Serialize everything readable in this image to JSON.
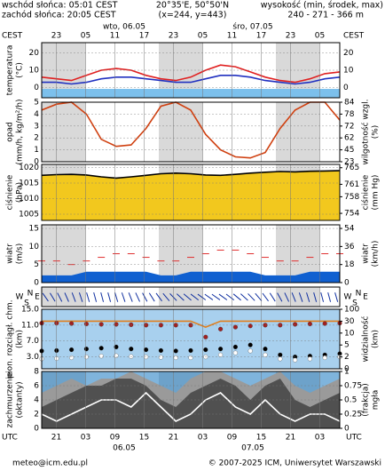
{
  "header": {
    "sunrise": "wschód słońca: 05:01 CEST",
    "sunset": "zachód słońca: 20:05 CEST",
    "coords": "20°35'E, 50°50'N",
    "grid": "(x=244, y=443)",
    "height_title": "wysokość (min, środek, max)",
    "height_values": "240 - 271 - 366 m"
  },
  "top_axis": {
    "label": "CEST",
    "ticks": [
      "23",
      "05",
      "11",
      "17",
      "23",
      "05",
      "11",
      "17",
      "23",
      "05"
    ],
    "dates": [
      "wto, 06.05",
      "śro, 07.05"
    ]
  },
  "bottom_axis": {
    "label": "UTC",
    "ticks": [
      "21",
      "03",
      "09",
      "15",
      "21",
      "03",
      "09",
      "15",
      "21",
      "03"
    ],
    "dates": [
      "06.05",
      "07.05"
    ]
  },
  "direction_labels": [
    "W",
    "S",
    "N",
    "E"
  ],
  "panels": [
    {
      "left_label": [
        "temperatura",
        "(°C)"
      ],
      "ylim": [
        -6,
        26
      ],
      "yticks": [
        0,
        10,
        20
      ],
      "right_ticks_same": true,
      "series": [
        {
          "color": "#e02020",
          "style": "line",
          "values": [
            6,
            5,
            4,
            7,
            10,
            11,
            10,
            7,
            5,
            4,
            6,
            10,
            13,
            12,
            9,
            6,
            4,
            3,
            5,
            8,
            9
          ]
        },
        {
          "color": "#2030c0",
          "style": "line",
          "values": [
            3,
            3,
            2,
            3,
            5,
            6,
            6,
            5,
            4,
            3,
            3,
            5,
            7,
            7,
            6,
            4,
            3,
            2,
            3,
            5,
            6
          ]
        }
      ]
    },
    {
      "left_label": [
        "opad",
        "(mm/h, kg/m²/h)"
      ],
      "right_label": [
        "wilgotność wzgl.",
        "(%)"
      ],
      "ylim": [
        0,
        5
      ],
      "yticks": [
        0,
        1,
        2,
        3,
        4,
        5
      ],
      "y2ticks": [
        23,
        45,
        62,
        72,
        78,
        84
      ],
      "y2_even_ticks": true,
      "series": [
        {
          "color": "#d04010",
          "style": "line",
          "axis": "y2",
          "values": [
            80,
            83,
            84,
            78,
            60,
            50,
            52,
            70,
            82,
            84,
            80,
            65,
            45,
            32,
            30,
            40,
            70,
            80,
            84,
            84,
            75
          ]
        }
      ]
    },
    {
      "left_label": [
        "ciśnienie",
        "(hPa)"
      ],
      "right_label": [
        "ciśnienie",
        "(mm Hg)"
      ],
      "ylim": [
        1003,
        1021
      ],
      "yticks": [
        1005,
        1010,
        1015,
        1020
      ],
      "y2lim": [
        752.3,
        765.8
      ],
      "y2ticks": [
        754,
        758,
        761,
        765
      ],
      "series": [
        {
          "color": "#000000",
          "fill": "#f2c81e",
          "style": "line",
          "values": [
            1017.5,
            1017.7,
            1017.8,
            1017.6,
            1017,
            1016.6,
            1017,
            1017.5,
            1018,
            1018.2,
            1018,
            1017.6,
            1017.5,
            1017.8,
            1018.2,
            1018.5,
            1018.7,
            1018.6,
            1018.8,
            1018.9,
            1019
          ]
        }
      ]
    },
    {
      "left_label": [
        "wiatr",
        "(m/s)"
      ],
      "right_label": [
        "wiatr",
        "(km/h)"
      ],
      "ylim": [
        0,
        16
      ],
      "yticks": [
        0,
        5,
        10,
        15
      ],
      "y2lim": [
        0,
        57.6
      ],
      "y2ticks": [
        0,
        18,
        36,
        54
      ],
      "series": [
        {
          "color": "#1060d0",
          "style": "area",
          "values": [
            2,
            2,
            2,
            3,
            3,
            3,
            3,
            3,
            2,
            2,
            3,
            3,
            3,
            3,
            3,
            2,
            2,
            2,
            3,
            3,
            3
          ]
        },
        {
          "color": "#e03030",
          "style": "dashes",
          "values": [
            6,
            6,
            5,
            6,
            7,
            8,
            8,
            7,
            6,
            6,
            7,
            8,
            9,
            9,
            8,
            7,
            6,
            6,
            7,
            8,
            8
          ]
        }
      ]
    },
    {
      "left_label": [
        "pion. rozciągł. chm.",
        "(km)"
      ],
      "right_label": [
        "widzialność",
        "(km)"
      ],
      "ylim": [
        0,
        15
      ],
      "yticks": [
        {
          "value": 3,
          "label": "3.0"
        },
        {
          "value": 7,
          "label": "7.0"
        },
        {
          "value": 11,
          "label": "11.0"
        },
        {
          "value": 15,
          "label": "15.0"
        }
      ],
      "y2ticks": [
        0,
        2,
        5,
        10,
        30,
        100
      ],
      "y2_even_ticks": true,
      "series": [
        {
          "color": "#e08020",
          "style": "line",
          "axis": "y2",
          "values": [
            30,
            30,
            30,
            30,
            30,
            30,
            30,
            30,
            30,
            30,
            30,
            20,
            30,
            30,
            30,
            30,
            30,
            30,
            30,
            30,
            30
          ]
        },
        {
          "color": "#a02020",
          "style": "dots",
          "values": [
            11.5,
            11.5,
            11.4,
            11.3,
            11.2,
            11.2,
            11.1,
            11,
            11,
            11,
            11,
            8,
            10,
            10.5,
            10.8,
            11,
            11,
            11.2,
            11.3,
            11.4,
            11.5
          ]
        },
        {
          "color": "#000000",
          "style": "dots",
          "values": [
            4.5,
            4.6,
            4.8,
            5,
            5.2,
            5.5,
            5,
            4.8,
            4.6,
            4.5,
            4.6,
            4.8,
            5,
            5.5,
            6,
            5,
            3.5,
            3,
            3.2,
            3.5,
            3.8
          ]
        },
        {
          "color": "#ffffff",
          "style": "dots",
          "values": [
            2.5,
            2.6,
            2.8,
            3,
            3.2,
            3.3,
            3.1,
            3,
            2.9,
            2.8,
            2.8,
            3,
            3.5,
            4,
            4.5,
            3.5,
            2.5,
            2.2,
            2.5,
            2.8,
            3
          ]
        }
      ]
    },
    {
      "left_label": [
        "zachmurzenie",
        "(oktanty)"
      ],
      "right_label": [
        "(frakcja)",
        "mgła"
      ],
      "ylim": [
        0,
        8
      ],
      "yticks": [
        0,
        2,
        4,
        6,
        8
      ],
      "y2lim": [
        0,
        1
      ],
      "y2ticks": [
        0,
        0.25,
        0.5,
        0.75,
        1
      ],
      "series": [
        {
          "color": "#9a9a9a",
          "style": "area",
          "values": [
            5,
            6,
            7,
            6,
            7,
            7,
            8,
            7,
            6,
            5,
            7,
            8,
            8,
            7,
            6,
            7,
            8,
            6,
            5,
            6,
            7
          ]
        },
        {
          "color": "#505050",
          "style": "area",
          "values": [
            3,
            4,
            5,
            6,
            6,
            7,
            7,
            6,
            4,
            3,
            5,
            6,
            7,
            6,
            4,
            6,
            7,
            4,
            3,
            4,
            5
          ]
        },
        {
          "color": "#ffffff",
          "style": "line",
          "values": [
            2,
            1,
            2,
            3,
            4,
            4,
            3,
            5,
            3,
            1,
            2,
            4,
            5,
            3,
            2,
            4,
            2,
            1,
            2,
            2,
            1
          ]
        }
      ]
    }
  ],
  "footer": {
    "email": "meteo@icm.edu.pl",
    "copyright": "© 2007-2025 ICM, Uniwersytet Warszawski"
  }
}
